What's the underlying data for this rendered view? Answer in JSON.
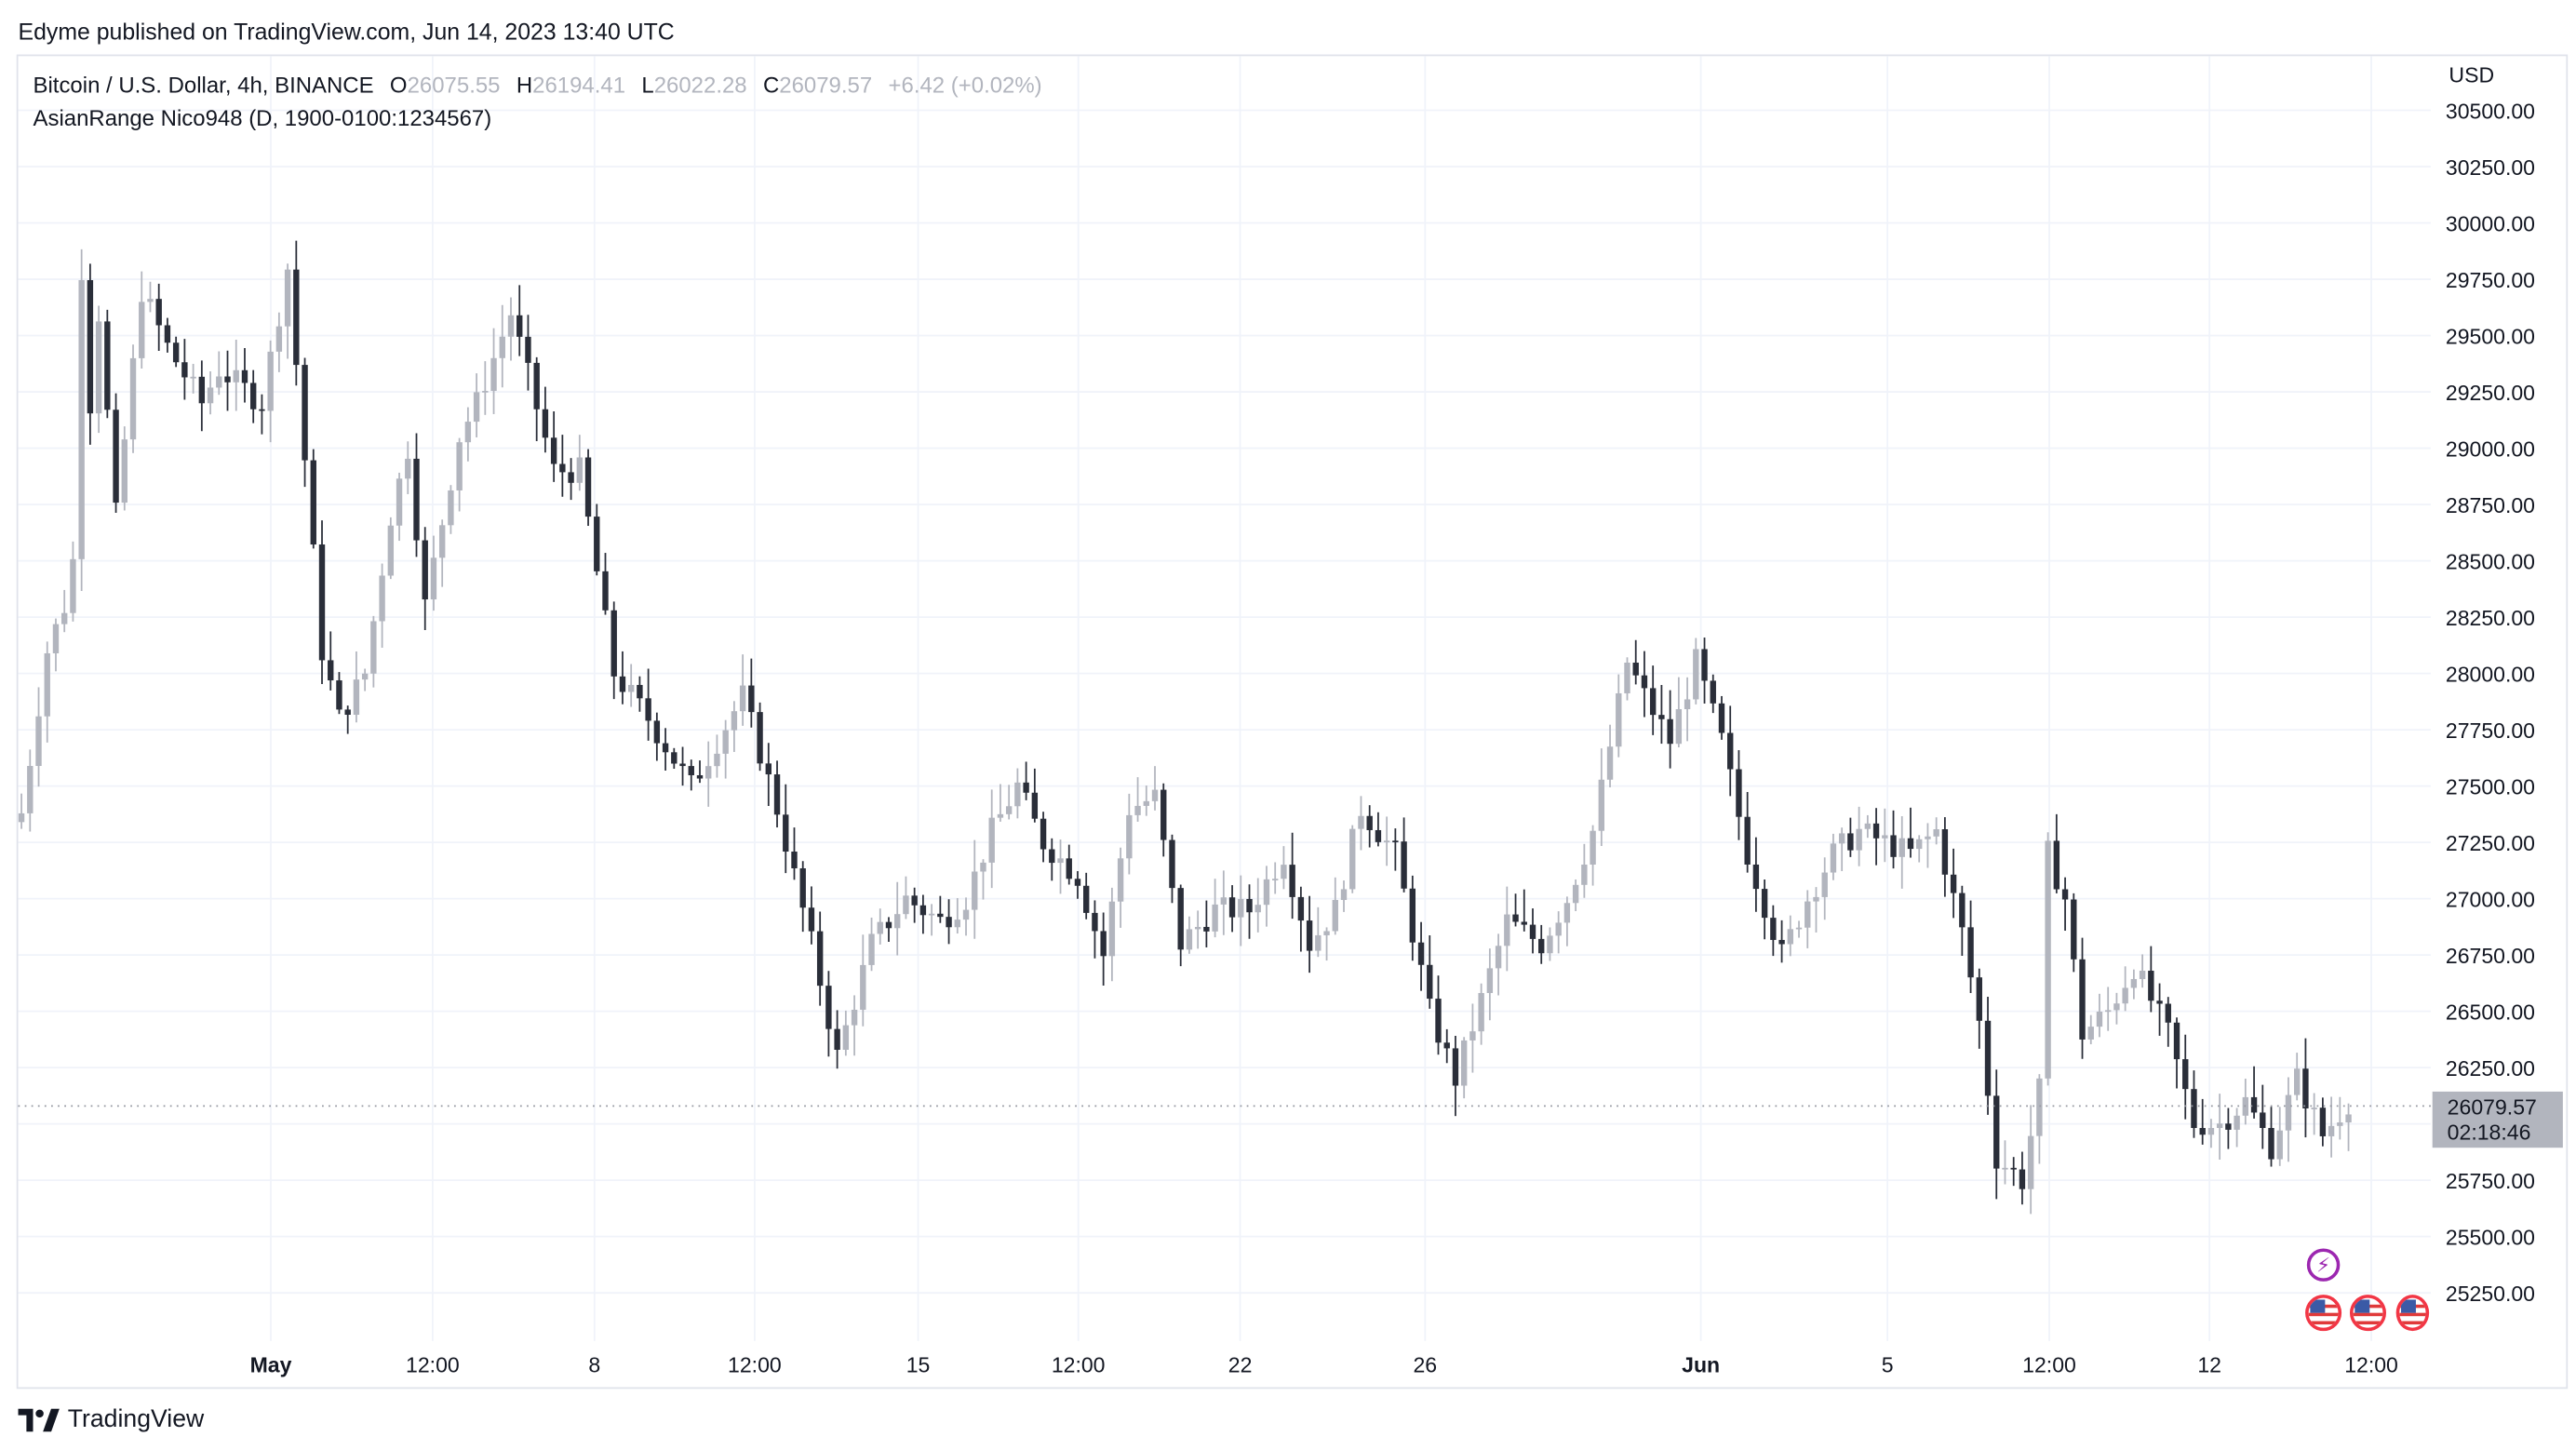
{
  "header": {
    "published_text": "Edyme published on TradingView.com, Jun 14, 2023 13:40 UTC"
  },
  "legend": {
    "symbol": "Bitcoin / U.S. Dollar, 4h, BINANCE",
    "o_label": "O",
    "o_value": "26075.55",
    "h_label": "H",
    "h_value": "26194.41",
    "l_label": "L",
    "l_value": "26022.28",
    "c_label": "C",
    "c_value": "26079.57",
    "change": "+6.42 (+0.02%)",
    "indicator": "AsianRange Nico948 (D, 1900-0100:1234567)"
  },
  "price_scale": {
    "currency": "USD",
    "last_price": "26079.57",
    "countdown": "02:18:46"
  },
  "footer": {
    "brand": "TradingView"
  },
  "colors": {
    "bull": "#b2b5be",
    "bear": "#2a2e39",
    "grid": "#f0f3fa",
    "axis_text": "#131722",
    "price_line": "#9598a1"
  },
  "chart_data": {
    "type": "candlestick",
    "symbol": "BTCUSD",
    "timeframe": "4h",
    "ylim": [
      25000,
      30600
    ],
    "y_ticks": [
      25250,
      25500,
      25750,
      26000,
      26250,
      26500,
      26750,
      27000,
      27250,
      27500,
      27750,
      28000,
      28250,
      28500,
      28750,
      29000,
      29250,
      29500,
      29750,
      30000,
      30250,
      30500
    ],
    "x_tick_labels": [
      "May",
      "12:00",
      "8",
      "12:00",
      "15",
      "12:00",
      "22",
      "26",
      "Jun",
      "5",
      "12:00",
      "12",
      "12:00"
    ],
    "grid": true,
    "last_price": 26079.57,
    "anchors": [
      [
        0,
        27380
      ],
      [
        3,
        28100
      ],
      [
        5,
        28300
      ],
      [
        6,
        28500
      ],
      [
        7,
        29800
      ],
      [
        8,
        29200
      ],
      [
        9,
        29600
      ],
      [
        11,
        28700
      ],
      [
        14,
        29700
      ],
      [
        17,
        29450
      ],
      [
        21,
        29200
      ],
      [
        23,
        29350
      ],
      [
        28,
        29200
      ],
      [
        31,
        29800
      ],
      [
        35,
        28100
      ],
      [
        37,
        27800
      ],
      [
        40,
        28000
      ],
      [
        43,
        28700
      ],
      [
        45,
        29000
      ],
      [
        47,
        28300
      ],
      [
        51,
        29050
      ],
      [
        53,
        29200
      ],
      [
        57,
        29600
      ],
      [
        62,
        28900
      ],
      [
        65,
        28900
      ],
      [
        69,
        28000
      ],
      [
        73,
        27800
      ],
      [
        78,
        27500
      ],
      [
        81,
        27700
      ],
      [
        84,
        27900
      ],
      [
        88,
        27400
      ],
      [
        92,
        26800
      ],
      [
        95,
        26300
      ],
      [
        99,
        26800
      ],
      [
        103,
        27000
      ],
      [
        107,
        26900
      ],
      [
        110,
        27000
      ],
      [
        113,
        27300
      ],
      [
        116,
        27500
      ],
      [
        119,
        27250
      ],
      [
        123,
        27100
      ],
      [
        126,
        26750
      ],
      [
        129,
        27400
      ],
      [
        132,
        27450
      ],
      [
        135,
        26800
      ],
      [
        139,
        26950
      ],
      [
        143,
        26950
      ],
      [
        147,
        27200
      ],
      [
        150,
        26800
      ],
      [
        153,
        26950
      ],
      [
        156,
        27400
      ],
      [
        160,
        27200
      ],
      [
        164,
        26500
      ],
      [
        167,
        26200
      ],
      [
        170,
        26550
      ],
      [
        173,
        26900
      ],
      [
        177,
        26800
      ],
      [
        180,
        27000
      ],
      [
        183,
        27300
      ],
      [
        187,
        28050
      ],
      [
        189,
        27900
      ],
      [
        192,
        27700
      ],
      [
        195,
        28050
      ],
      [
        198,
        27700
      ],
      [
        201,
        27200
      ],
      [
        205,
        26750
      ],
      [
        208,
        27000
      ],
      [
        211,
        27200
      ],
      [
        214,
        27300
      ],
      [
        217,
        27250
      ],
      [
        220,
        27200
      ],
      [
        223,
        27300
      ],
      [
        226,
        26850
      ],
      [
        228,
        26450
      ],
      [
        230,
        25850
      ],
      [
        233,
        25750
      ],
      [
        235,
        26150
      ],
      [
        236,
        27200
      ],
      [
        238,
        27000
      ],
      [
        240,
        26400
      ],
      [
        243,
        26500
      ],
      [
        246,
        26700
      ],
      [
        250,
        26400
      ],
      [
        253,
        26000
      ],
      [
        256,
        26000
      ],
      [
        259,
        26100
      ],
      [
        262,
        25900
      ],
      [
        265,
        26200
      ],
      [
        268,
        25950
      ],
      [
        271,
        26100
      ]
    ]
  }
}
